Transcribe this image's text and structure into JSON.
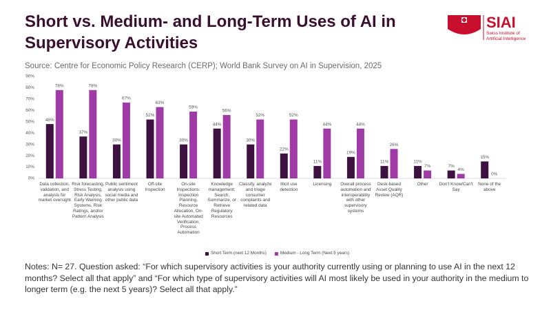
{
  "logo": {
    "name": "SIAI",
    "subtitle": "Swiss Institute of Artificial Intelligence"
  },
  "chart_data": {
    "type": "bar",
    "title": "Short vs. Medium- and Long-Term Uses of AI in Supervisory Activities",
    "subtitle": "Source: Centre for Economic Policy Research (CERP); World Bank Survey on AI in Supervision, 2025",
    "notes": "Notes: N= 27. Question asked: “For which supervisory activities is your authority currently using or planning to use AI in the next 12 months? Select all that apply” and “For which type of supervisory activities will AI most likely be used in your authority in the medium to longer term (e.g. the next 5 years)? Select all that apply.”",
    "categories": [
      "Data collection, validation, and analysis for market oversight",
      "Risk forecasting, Stress Testing, Risk Analysis, Early Warning Systems, Risk Ratings, and/or Pattern Analysis",
      "Public sentiment analysis using social media and other public data",
      "Off-site Inspection",
      "On-site Inspections: Inspection Planning, Resource Allocation, On-site Automated Verification, Process Automation",
      "Knowledge management: Search, Summarize, or Retrieve Regulatory Resources",
      "Classify, analyze and triage consumer complaints and related data",
      "Illicit use detection",
      "Licensing",
      "Overall process automation and interoperability with other supervisory systems",
      "Desk-based Asset Quality Review (AQR)",
      "Other",
      "Don't Know/Can't Say",
      "None of the above"
    ],
    "series": [
      {
        "name": "Short Term (next 12 Months)",
        "color": "#3d1140",
        "values": [
          48,
          37,
          30,
          52,
          30,
          44,
          30,
          22,
          11,
          19,
          11,
          11,
          7,
          15
        ],
        "value_labels": [
          "48%",
          "37%",
          "30%",
          "52%",
          "30%",
          "44%",
          "30%",
          "22%",
          "11%",
          "19%",
          "11%",
          "11%",
          "7%",
          "15%"
        ]
      },
      {
        "name": "Medium - Long Term (Next 5 years)",
        "color": "#a03aa6",
        "values": [
          78,
          78,
          67,
          63,
          59,
          56,
          52,
          52,
          44,
          44,
          26,
          7,
          4,
          0
        ],
        "value_labels": [
          "78%",
          "78%",
          "67%",
          "63%",
          "59%",
          "56%",
          "52%",
          "52%",
          "44%",
          "44%",
          "26%",
          "7%",
          "4%",
          "0%"
        ]
      }
    ],
    "ylim": [
      0,
      90
    ],
    "yticks": [
      {
        "value": 0,
        "label": "0%"
      },
      {
        "value": 10,
        "label": "10%"
      },
      {
        "value": 20,
        "label": "20%"
      },
      {
        "value": 30,
        "label": "30%"
      },
      {
        "value": 40,
        "label": "40%"
      },
      {
        "value": 50,
        "label": "50%"
      },
      {
        "value": 60,
        "label": "60%"
      },
      {
        "value": 70,
        "label": "70%"
      },
      {
        "value": 80,
        "label": "80%"
      },
      {
        "value": 90,
        "label": "90%"
      }
    ],
    "grid": false,
    "legend": "bottom"
  }
}
